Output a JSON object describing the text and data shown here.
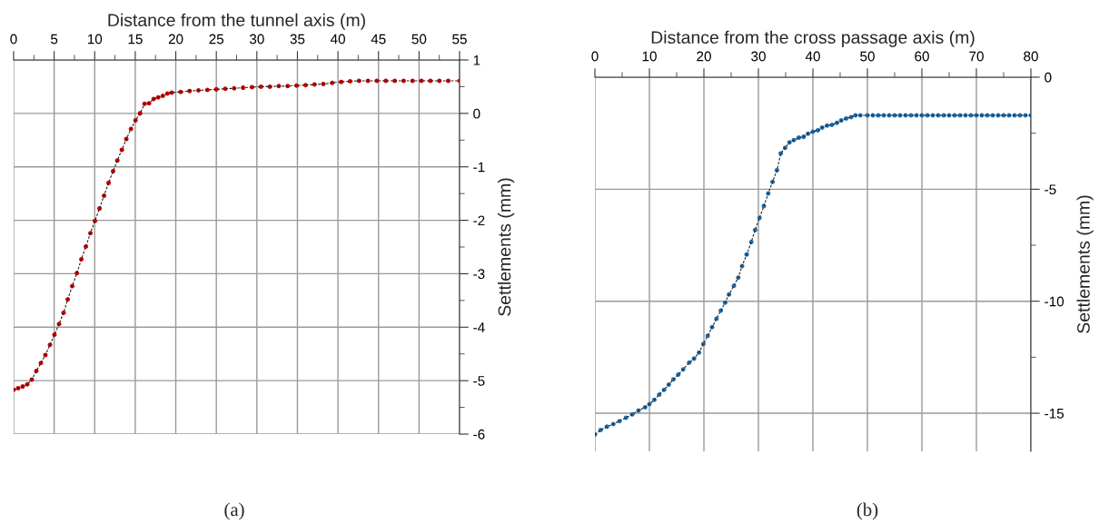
{
  "chart_data": [
    {
      "type": "line",
      "xlabel": "Distance from the tunnel axis (m)",
      "ylabel": "Settlements (mm)",
      "xlim": [
        0,
        55
      ],
      "xticks": [
        0,
        5,
        10,
        15,
        20,
        25,
        30,
        35,
        40,
        45,
        50,
        55
      ],
      "ylim": [
        -6,
        1
      ],
      "yticks": [
        -6,
        -5,
        -4,
        -3,
        -2,
        -1,
        0,
        1
      ],
      "grid": true,
      "marker": "circle",
      "line_style": "dashed",
      "annotations": [
        "(a)"
      ],
      "series": [
        {
          "color": "#cc0000",
          "x": [
            0,
            0.56,
            1.12,
            1.68,
            2.24,
            2.8,
            3.36,
            3.92,
            4.48,
            5.04,
            5.6,
            6.16,
            6.67,
            7.23,
            7.8,
            8.35,
            8.91,
            9.47,
            10.03,
            10.59,
            11.15,
            11.71,
            12.27,
            12.79,
            13.35,
            13.9,
            14.47,
            15.03,
            15.59,
            16.15,
            16.7,
            17.27,
            17.83,
            18.4,
            18.96,
            19.5,
            20.6,
            21.7,
            22.8,
            23.9,
            25,
            26.1,
            27.2,
            28.3,
            29.4,
            30.5,
            31.6,
            32.7,
            33.8,
            34.9,
            36,
            37.1,
            38.2,
            39.3,
            40.4,
            41.5,
            42.6,
            43.7,
            44.8,
            45.9,
            47,
            48.1,
            49.2,
            50.3,
            51.4,
            52.5,
            53.6,
            55
          ],
          "values": [
            -5.17,
            -5.14,
            -5.11,
            -5.07,
            -4.98,
            -4.82,
            -4.67,
            -4.52,
            -4.33,
            -4.14,
            -3.94,
            -3.73,
            -3.48,
            -3.23,
            -2.99,
            -2.73,
            -2.49,
            -2.24,
            -2.01,
            -1.78,
            -1.54,
            -1.3,
            -1.08,
            -0.88,
            -0.68,
            -0.48,
            -0.29,
            -0.13,
            0,
            0.18,
            0.19,
            0.27,
            0.3,
            0.33,
            0.37,
            0.39,
            0.4,
            0.42,
            0.43,
            0.44,
            0.45,
            0.46,
            0.47,
            0.48,
            0.49,
            0.5,
            0.5,
            0.51,
            0.51,
            0.52,
            0.53,
            0.54,
            0.55,
            0.57,
            0.59,
            0.6,
            0.61,
            0.61,
            0.61,
            0.61,
            0.61,
            0.61,
            0.61,
            0.61,
            0.61,
            0.61,
            0.61,
            0.61
          ]
        }
      ]
    },
    {
      "type": "line",
      "xlabel": "Distance from the cross passage axis (m)",
      "ylabel": "Settlements (mm)",
      "xlim": [
        0,
        80
      ],
      "xticks": [
        0,
        10,
        20,
        30,
        40,
        50,
        60,
        70,
        80
      ],
      "ylim": [
        -16.7,
        0
      ],
      "yticks": [
        {
          "value": -15,
          "label": "-15"
        },
        {
          "value": -10,
          "label": "-10"
        },
        {
          "value": -5,
          "label": "-5"
        },
        0
      ],
      "grid": true,
      "marker": "circle",
      "line_style": "dashed",
      "annotations": [
        "(b)"
      ],
      "series": [
        {
          "color": "#1f6fb0",
          "x": [
            0,
            1.05,
            2.2,
            3.37,
            4.5,
            5.7,
            6.86,
            8,
            9.2,
            10,
            10.9,
            11.8,
            12.7,
            13.55,
            14.4,
            15.3,
            16.2,
            17.3,
            18.2,
            19.1,
            19.9,
            20.7,
            21.5,
            22.3,
            23.1,
            23.9,
            24.6,
            25.5,
            26.3,
            27,
            27.85,
            28.7,
            29.4,
            30.2,
            31,
            31.8,
            32.6,
            33.4,
            34.1,
            34.9,
            35.7,
            36.5,
            37.4,
            38.3,
            39.1,
            40,
            40.9,
            41.7,
            42.6,
            43.5,
            44.4,
            45.2,
            46.1,
            47,
            47.8,
            48.7,
            50,
            51,
            52,
            53,
            54,
            55,
            56,
            57,
            58,
            59,
            60,
            61,
            62,
            63,
            64,
            65,
            66,
            67,
            68,
            69,
            70,
            71,
            72,
            73,
            74,
            75,
            76,
            77,
            78,
            79,
            80
          ],
          "values": [
            -15.95,
            -15.75,
            -15.6,
            -15.48,
            -15.35,
            -15.2,
            -15.05,
            -14.88,
            -14.73,
            -14.59,
            -14.4,
            -14.17,
            -13.95,
            -13.72,
            -13.49,
            -13.27,
            -13.04,
            -12.74,
            -12.56,
            -12.29,
            -11.91,
            -11.54,
            -11.16,
            -10.78,
            -10.42,
            -10.06,
            -9.7,
            -9.31,
            -8.95,
            -8.43,
            -7.91,
            -7.36,
            -6.82,
            -6.28,
            -5.75,
            -5.19,
            -4.67,
            -4.15,
            -3.4,
            -3.15,
            -2.91,
            -2.81,
            -2.7,
            -2.66,
            -2.52,
            -2.43,
            -2.37,
            -2.25,
            -2.16,
            -2.13,
            -2.04,
            -1.93,
            -1.84,
            -1.78,
            -1.7,
            -1.7,
            -1.7,
            -1.7,
            -1.7,
            -1.7,
            -1.7,
            -1.7,
            -1.7,
            -1.7,
            -1.7,
            -1.7,
            -1.7,
            -1.7,
            -1.7,
            -1.7,
            -1.7,
            -1.7,
            -1.7,
            -1.7,
            -1.7,
            -1.7,
            -1.7,
            -1.7,
            -1.7,
            -1.7,
            -1.7,
            -1.7,
            -1.7,
            -1.7,
            -1.7,
            -1.7,
            -1.7
          ]
        }
      ]
    }
  ]
}
